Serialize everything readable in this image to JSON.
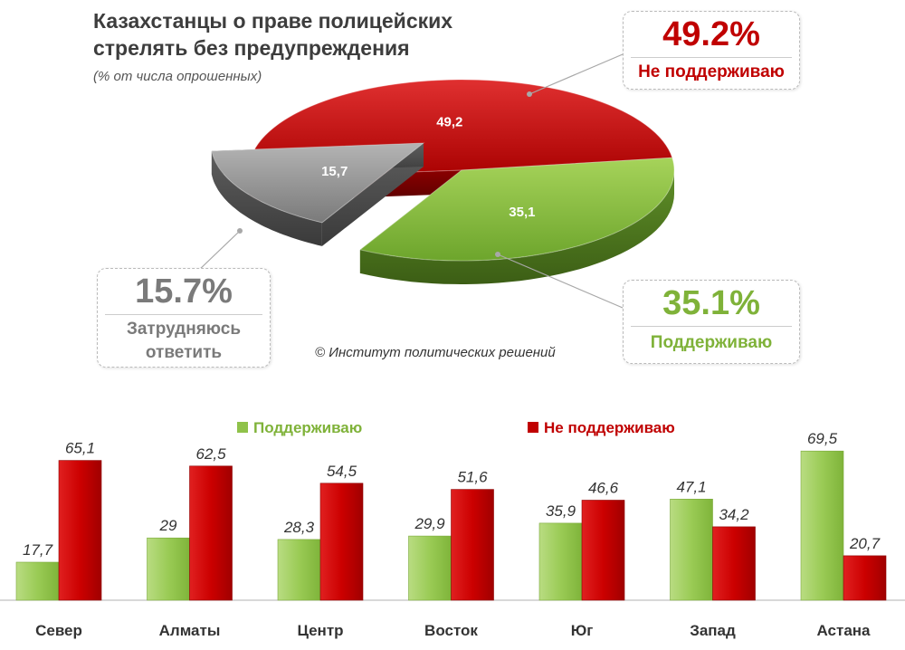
{
  "header": {
    "title": "Казахстанцы о праве полицейских стрелять без предупреждения",
    "subtitle": "(% от числа опрошенных)"
  },
  "copyright": "© Институт политических решений",
  "callouts": {
    "not_support": {
      "pct": "49.2%",
      "label": "Не поддерживаю"
    },
    "support": {
      "pct": "35.1%",
      "label": "Поддерживаю"
    },
    "undecided": {
      "pct": "15.7%",
      "label": "Затрудняюсь ответить"
    }
  },
  "colors": {
    "support": "#8fc24a",
    "not_support": "#c00000",
    "undecided": "#8a8a8a"
  },
  "chart_data": [
    {
      "type": "pie",
      "title": "Казахстанцы о праве полицейских стрелять без предупреждения",
      "subtitle": "(% от числа опрошенных)",
      "slices": [
        {
          "label": "Не поддерживаю",
          "value": 49.2,
          "value_label": "49,2"
        },
        {
          "label": "Поддерживаю",
          "value": 35.1,
          "value_label": "35,1"
        },
        {
          "label": "Затрудняюсь ответить",
          "value": 15.7,
          "value_label": "15,7"
        }
      ]
    },
    {
      "type": "bar",
      "categories": [
        "Север",
        "Алматы",
        "Центр",
        "Восток",
        "Юг",
        "Запад",
        "Астана"
      ],
      "series": [
        {
          "name": "Поддерживаю",
          "values": [
            17.7,
            29,
            28.3,
            29.9,
            35.9,
            47.1,
            69.5
          ],
          "labels": [
            "17,7",
            "29",
            "28,3",
            "29,9",
            "35,9",
            "47,1",
            "69,5"
          ]
        },
        {
          "name": "Не поддерживаю",
          "values": [
            65.1,
            62.5,
            54.5,
            51.6,
            46.6,
            34.2,
            20.7
          ],
          "labels": [
            "65,1",
            "62,5",
            "54,5",
            "51,6",
            "46,6",
            "34,2",
            "20,7"
          ]
        }
      ],
      "ylim": [
        0,
        70
      ],
      "legend": "top-center",
      "grid": false
    }
  ]
}
